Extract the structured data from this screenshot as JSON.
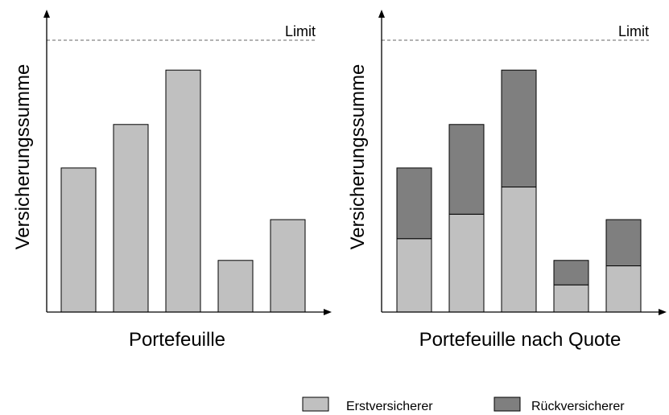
{
  "chart_data": [
    {
      "type": "bar",
      "xlabel": "Portefeuille",
      "ylabel": "Versicherungssumme",
      "ylim": [
        0,
        100
      ],
      "limit_label": "Limit",
      "limit_value": 100,
      "series": [
        {
          "name": "Erstversicherer",
          "values": [
            53,
            69,
            89,
            19,
            34
          ]
        }
      ]
    },
    {
      "type": "bar",
      "stacked": true,
      "xlabel": "Portefeuille nach Quote",
      "ylabel": "Versicherungssumme",
      "ylim": [
        0,
        100
      ],
      "limit_label": "Limit",
      "limit_value": 100,
      "series": [
        {
          "name": "Erstversicherer",
          "values": [
            27,
            36,
            46,
            10,
            17
          ]
        },
        {
          "name": "Rückversicherer",
          "values": [
            26,
            33,
            43,
            9,
            17
          ]
        }
      ]
    }
  ],
  "legend": {
    "placement": "bottom-right",
    "items": [
      {
        "label": "Erstversicherer",
        "color": "#c0c0c0"
      },
      {
        "label": "Rückversicherer",
        "color": "#7f7f7f"
      }
    ]
  }
}
